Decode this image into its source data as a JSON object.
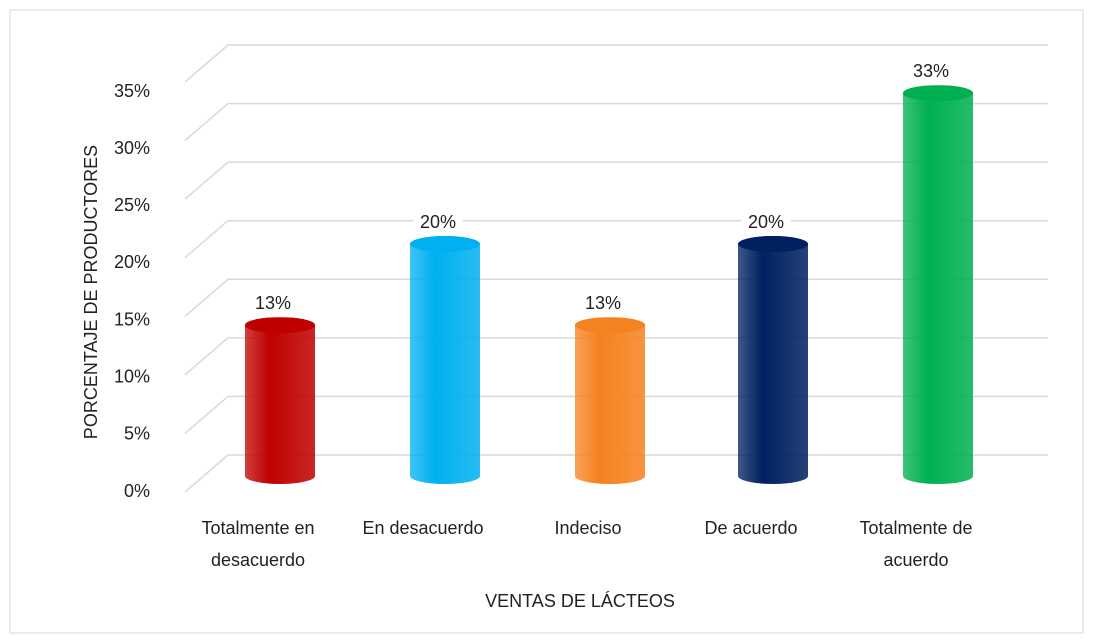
{
  "chart_data": {
    "type": "bar",
    "x_label": "VENTAS DE LÁCTEOS",
    "y_label": "PORCENTAJE DE PRODUCTORES",
    "categories": [
      "Totalmente en desacuerdo",
      "En desacuerdo",
      "Indeciso",
      "De acuerdo",
      "Totalmente de acuerdo"
    ],
    "values": [
      13,
      20,
      13,
      20,
      33
    ],
    "value_labels": [
      "13%",
      "20%",
      "13%",
      "20%",
      "33%"
    ],
    "colors": [
      "#c00000",
      "#00b0f0",
      "#f58220",
      "#002060",
      "#00b050"
    ],
    "ylim": [
      0,
      35
    ],
    "yticks": [
      {
        "value": 0,
        "label": "0%"
      },
      {
        "value": 5,
        "label": "5%"
      },
      {
        "value": 10,
        "label": "10%"
      },
      {
        "value": 15,
        "label": "15%"
      },
      {
        "value": 20,
        "label": "20%"
      },
      {
        "value": 25,
        "label": "25%"
      },
      {
        "value": 30,
        "label": "30%"
      },
      {
        "value": 35,
        "label": "35%"
      }
    ],
    "grid": true
  }
}
